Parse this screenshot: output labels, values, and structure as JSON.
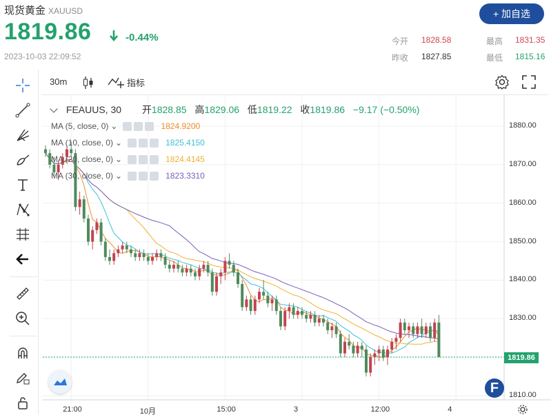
{
  "header": {
    "name": "现货黄金",
    "symbol": "XAUUSD",
    "add_label": "+ 加自选",
    "price": "1819.86",
    "change_pct": "-0.44%",
    "timestamp": "2023-10-03 22:09:52",
    "stats": {
      "open_label": "今开",
      "open": "1828.58",
      "high_label": "最高",
      "high": "1831.35",
      "prev_label": "昨收",
      "prev": "1827.85",
      "low_label": "最低",
      "low": "1815.16"
    },
    "colors": {
      "up": "#23a26d",
      "down": "#d0454c",
      "accent": "#1f4e9c"
    }
  },
  "toolbar": {
    "timeframe": "30m",
    "indicators_label": "指标",
    "left_tools": [
      "crosshair-icon",
      "trend-line-icon",
      "pitchfork-icon",
      "brush-icon",
      "text-icon",
      "pattern-icon",
      "measure-icon",
      "back-arrow-icon",
      "ruler-icon",
      "zoom-in-icon",
      "magnet-icon",
      "lock-draw-icon",
      "lock-icon"
    ]
  },
  "legend": {
    "symbol": "FEAUUS, 30",
    "open_label": "开",
    "open": "1828.85",
    "high_label": "高",
    "high": "1829.06",
    "low_label": "低",
    "low": "1819.22",
    "close_label": "收",
    "close": "1819.86",
    "change": "−9.17 (−0.50%)",
    "ma": [
      {
        "label": "MA (5, close, 0)",
        "value": "1824.9200",
        "color": "#f08a24"
      },
      {
        "label": "MA (10, close, 0)",
        "value": "1825.4150",
        "color": "#3cc0d8"
      },
      {
        "label": "MA (20, close, 0)",
        "value": "1824.4145",
        "color": "#f0b030"
      },
      {
        "label": "MA (30, close, 0)",
        "value": "1823.3310",
        "color": "#7b5cb8"
      }
    ]
  },
  "last_price_label": "1819.86",
  "chart_data": {
    "type": "candlestick",
    "ylim": [
      1808,
      1888
    ],
    "yticks": [
      "1880.00",
      "1870.00",
      "1860.00",
      "1850.00",
      "1840.00",
      "1830.00",
      "1820.00",
      "1810.00"
    ],
    "xticks": [
      {
        "label": "21:00",
        "index": 6
      },
      {
        "label": "10月",
        "index": 24
      },
      {
        "label": "15:00",
        "index": 42
      },
      {
        "label": "3",
        "index": 60
      },
      {
        "label": "12:00",
        "index": 78
      },
      {
        "label": "4",
        "index": 96
      }
    ],
    "ohlc": [
      [
        1874,
        1875,
        1872,
        1873
      ],
      [
        1873,
        1874,
        1869,
        1870
      ],
      [
        1870,
        1872,
        1867,
        1868
      ],
      [
        1868,
        1871,
        1866,
        1870
      ],
      [
        1870,
        1873,
        1869,
        1872
      ],
      [
        1872,
        1875,
        1871,
        1874
      ],
      [
        1874,
        1876,
        1872,
        1873
      ],
      [
        1873,
        1874,
        1858,
        1859
      ],
      [
        1859,
        1863,
        1857,
        1861
      ],
      [
        1861,
        1862,
        1855,
        1856
      ],
      [
        1856,
        1857,
        1849,
        1850
      ],
      [
        1850,
        1854,
        1848,
        1853
      ],
      [
        1853,
        1856,
        1852,
        1855
      ],
      [
        1855,
        1856,
        1849,
        1850
      ],
      [
        1850,
        1851,
        1845,
        1846
      ],
      [
        1846,
        1848,
        1844,
        1845
      ],
      [
        1845,
        1848,
        1844,
        1847
      ],
      [
        1847,
        1849,
        1846,
        1848
      ],
      [
        1848,
        1850,
        1847,
        1849
      ],
      [
        1849,
        1850,
        1847,
        1848
      ],
      [
        1848,
        1849,
        1846,
        1847
      ],
      [
        1847,
        1848,
        1845,
        1846
      ],
      [
        1846,
        1848,
        1845,
        1847
      ],
      [
        1847,
        1848,
        1845,
        1846
      ],
      [
        1846,
        1847,
        1844,
        1845
      ],
      [
        1845,
        1847,
        1844,
        1846
      ],
      [
        1846,
        1848,
        1845,
        1847
      ],
      [
        1847,
        1848,
        1845,
        1846
      ],
      [
        1846,
        1847,
        1843,
        1844
      ],
      [
        1844,
        1845,
        1842,
        1843
      ],
      [
        1843,
        1845,
        1842,
        1844
      ],
      [
        1844,
        1845,
        1842,
        1843
      ],
      [
        1843,
        1844,
        1841,
        1842
      ],
      [
        1842,
        1844,
        1841,
        1843
      ],
      [
        1843,
        1844,
        1841,
        1842
      ],
      [
        1842,
        1843,
        1840,
        1841
      ],
      [
        1841,
        1844,
        1840,
        1843
      ],
      [
        1843,
        1845,
        1842,
        1844
      ],
      [
        1844,
        1845,
        1841,
        1842
      ],
      [
        1842,
        1843,
        1836,
        1837
      ],
      [
        1837,
        1842,
        1836,
        1841
      ],
      [
        1841,
        1843,
        1839,
        1842
      ],
      [
        1842,
        1846,
        1840,
        1845
      ],
      [
        1845,
        1847,
        1843,
        1844
      ],
      [
        1844,
        1845,
        1841,
        1842
      ],
      [
        1842,
        1843,
        1838,
        1839
      ],
      [
        1839,
        1840,
        1832,
        1833
      ],
      [
        1833,
        1836,
        1832,
        1835
      ],
      [
        1835,
        1836,
        1831,
        1832
      ],
      [
        1832,
        1836,
        1831,
        1835
      ],
      [
        1835,
        1838,
        1834,
        1837
      ],
      [
        1837,
        1840,
        1835,
        1836
      ],
      [
        1836,
        1837,
        1833,
        1834
      ],
      [
        1834,
        1836,
        1832,
        1835
      ],
      [
        1835,
        1836,
        1831,
        1832
      ],
      [
        1832,
        1833,
        1827,
        1828
      ],
      [
        1828,
        1833,
        1827,
        1832
      ],
      [
        1832,
        1834,
        1830,
        1833
      ],
      [
        1833,
        1834,
        1830,
        1831
      ],
      [
        1831,
        1833,
        1830,
        1832
      ],
      [
        1832,
        1833,
        1830,
        1831
      ],
      [
        1831,
        1832,
        1829,
        1830
      ],
      [
        1830,
        1832,
        1829,
        1831
      ],
      [
        1831,
        1832,
        1828,
        1829
      ],
      [
        1829,
        1831,
        1828,
        1830
      ],
      [
        1830,
        1831,
        1828,
        1829
      ],
      [
        1829,
        1830,
        1826,
        1827
      ],
      [
        1827,
        1829,
        1825,
        1828
      ],
      [
        1828,
        1829,
        1825,
        1826
      ],
      [
        1826,
        1827,
        1820,
        1821
      ],
      [
        1821,
        1825,
        1820,
        1824
      ],
      [
        1824,
        1826,
        1822,
        1823
      ],
      [
        1823,
        1824,
        1820,
        1821
      ],
      [
        1821,
        1824,
        1820,
        1823
      ],
      [
        1823,
        1824,
        1820,
        1822
      ],
      [
        1822,
        1823,
        1815,
        1816
      ],
      [
        1816,
        1821,
        1815,
        1820
      ],
      [
        1820,
        1822,
        1818,
        1821
      ],
      [
        1821,
        1823,
        1819,
        1822
      ],
      [
        1822,
        1823,
        1819,
        1820
      ],
      [
        1820,
        1823,
        1818,
        1822
      ],
      [
        1822,
        1825,
        1821,
        1824
      ],
      [
        1824,
        1826,
        1822,
        1825
      ],
      [
        1825,
        1830,
        1824,
        1829
      ],
      [
        1829,
        1830,
        1826,
        1827
      ],
      [
        1827,
        1829,
        1825,
        1828
      ],
      [
        1828,
        1829,
        1825,
        1826
      ],
      [
        1826,
        1829,
        1825,
        1828
      ],
      [
        1828,
        1830,
        1825,
        1826
      ],
      [
        1826,
        1829,
        1825,
        1828
      ],
      [
        1828,
        1829,
        1824,
        1825
      ],
      [
        1825,
        1830,
        1824,
        1829
      ],
      [
        1829,
        1831,
        1820,
        1820
      ]
    ]
  }
}
